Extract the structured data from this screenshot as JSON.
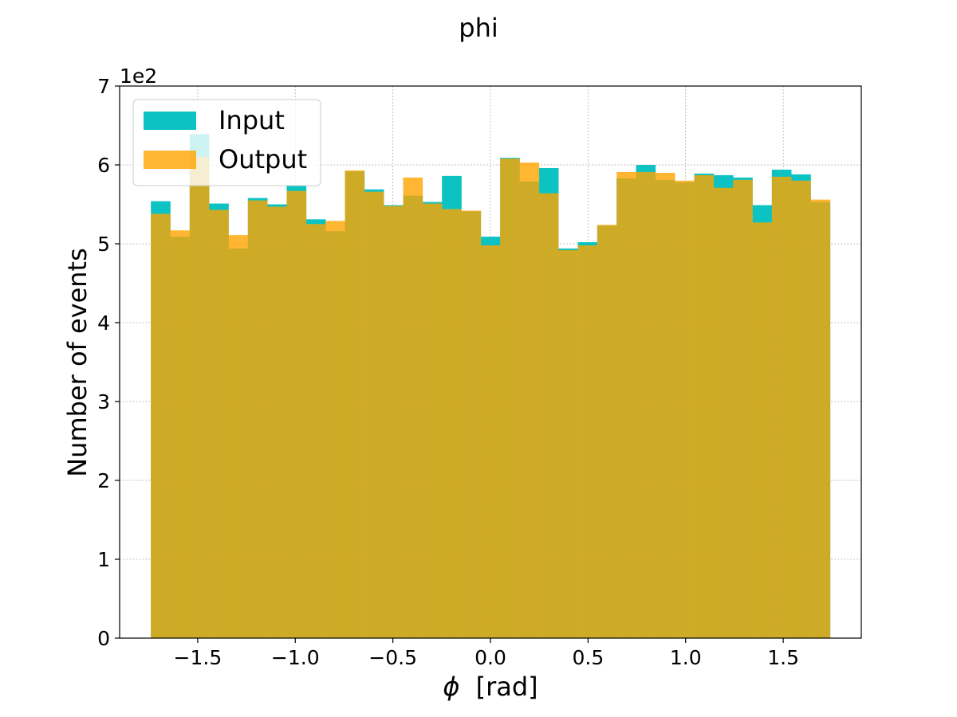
{
  "chart_data": {
    "type": "bar",
    "title": "phi",
    "xlabel_symbol": "ϕ",
    "xlabel_unit": "[rad]",
    "ylabel": "Number of events",
    "y_offset_label": "1e2",
    "x_tick_labels": [
      "−1.5",
      "−1.0",
      "−0.5",
      "0.0",
      "0.5",
      "1.0",
      "1.5"
    ],
    "x_ticks": [
      -1.5,
      -1.0,
      -0.5,
      0.0,
      0.5,
      1.0,
      1.5
    ],
    "y_tick_labels": [
      "0",
      "1",
      "2",
      "3",
      "4",
      "5",
      "6",
      "7"
    ],
    "y_ticks": [
      0,
      1,
      2,
      3,
      4,
      5,
      6,
      7
    ],
    "xlim": [
      -1.9,
      1.9
    ],
    "ylim": [
      0,
      7
    ],
    "y_unit_multiplier": 100,
    "grid": true,
    "legend_position": "top-left",
    "bins_range": [
      -1.74,
      1.74
    ],
    "bin_count": 35,
    "series": [
      {
        "name": "Input",
        "color": "#00bfbf",
        "alpha": 0.95,
        "values": [
          5.54,
          5.09,
          6.39,
          5.51,
          4.94,
          5.58,
          5.5,
          5.74,
          5.31,
          5.16,
          5.92,
          5.69,
          5.49,
          5.61,
          5.53,
          5.86,
          5.41,
          5.09,
          6.09,
          5.79,
          5.96,
          4.94,
          5.02,
          5.23,
          5.83,
          6.0,
          5.81,
          5.78,
          5.89,
          5.87,
          5.84,
          5.49,
          5.94,
          5.88,
          5.53
        ]
      },
      {
        "name": "Output",
        "color": "#ffa500",
        "alpha": 0.8,
        "values": [
          5.38,
          5.17,
          6.1,
          5.43,
          5.11,
          5.55,
          5.47,
          5.67,
          5.25,
          5.29,
          5.93,
          5.66,
          5.48,
          5.84,
          5.51,
          5.44,
          5.42,
          4.98,
          6.08,
          6.03,
          5.64,
          4.92,
          4.98,
          5.24,
          5.91,
          5.91,
          5.9,
          5.8,
          5.87,
          5.71,
          5.81,
          5.27,
          5.85,
          5.8,
          5.56
        ]
      }
    ]
  }
}
